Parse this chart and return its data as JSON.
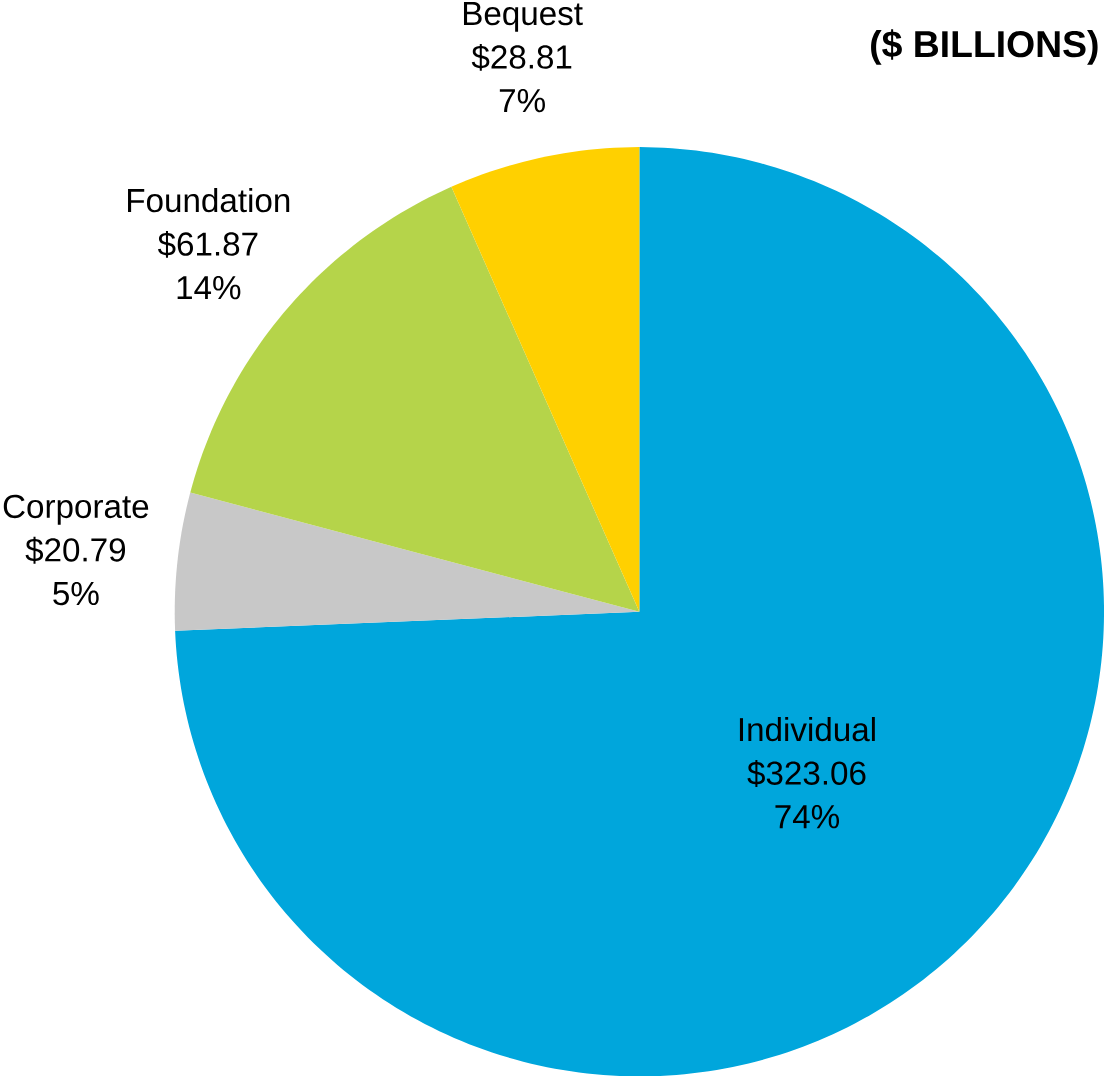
{
  "chart_data": {
    "type": "pie",
    "title": "($ BILLIONS)",
    "categories": [
      "Individual",
      "Corporate",
      "Foundation",
      "Bequest"
    ],
    "values": [
      323.06,
      20.79,
      61.87,
      28.81
    ],
    "colors": [
      "#00a6dc",
      "#c8c8c8",
      "#b5d44a",
      "#ffd000"
    ],
    "value_labels": [
      "$323.06",
      "$20.79",
      "$61.87",
      "$28.81"
    ],
    "annotations": [
      {
        "text": "74%",
        "x": "Individual"
      },
      {
        "text": "5%",
        "x": "Corporate"
      },
      {
        "text": "14%",
        "x": "Foundation"
      },
      {
        "text": "7%",
        "x": "Bequest"
      }
    ]
  }
}
